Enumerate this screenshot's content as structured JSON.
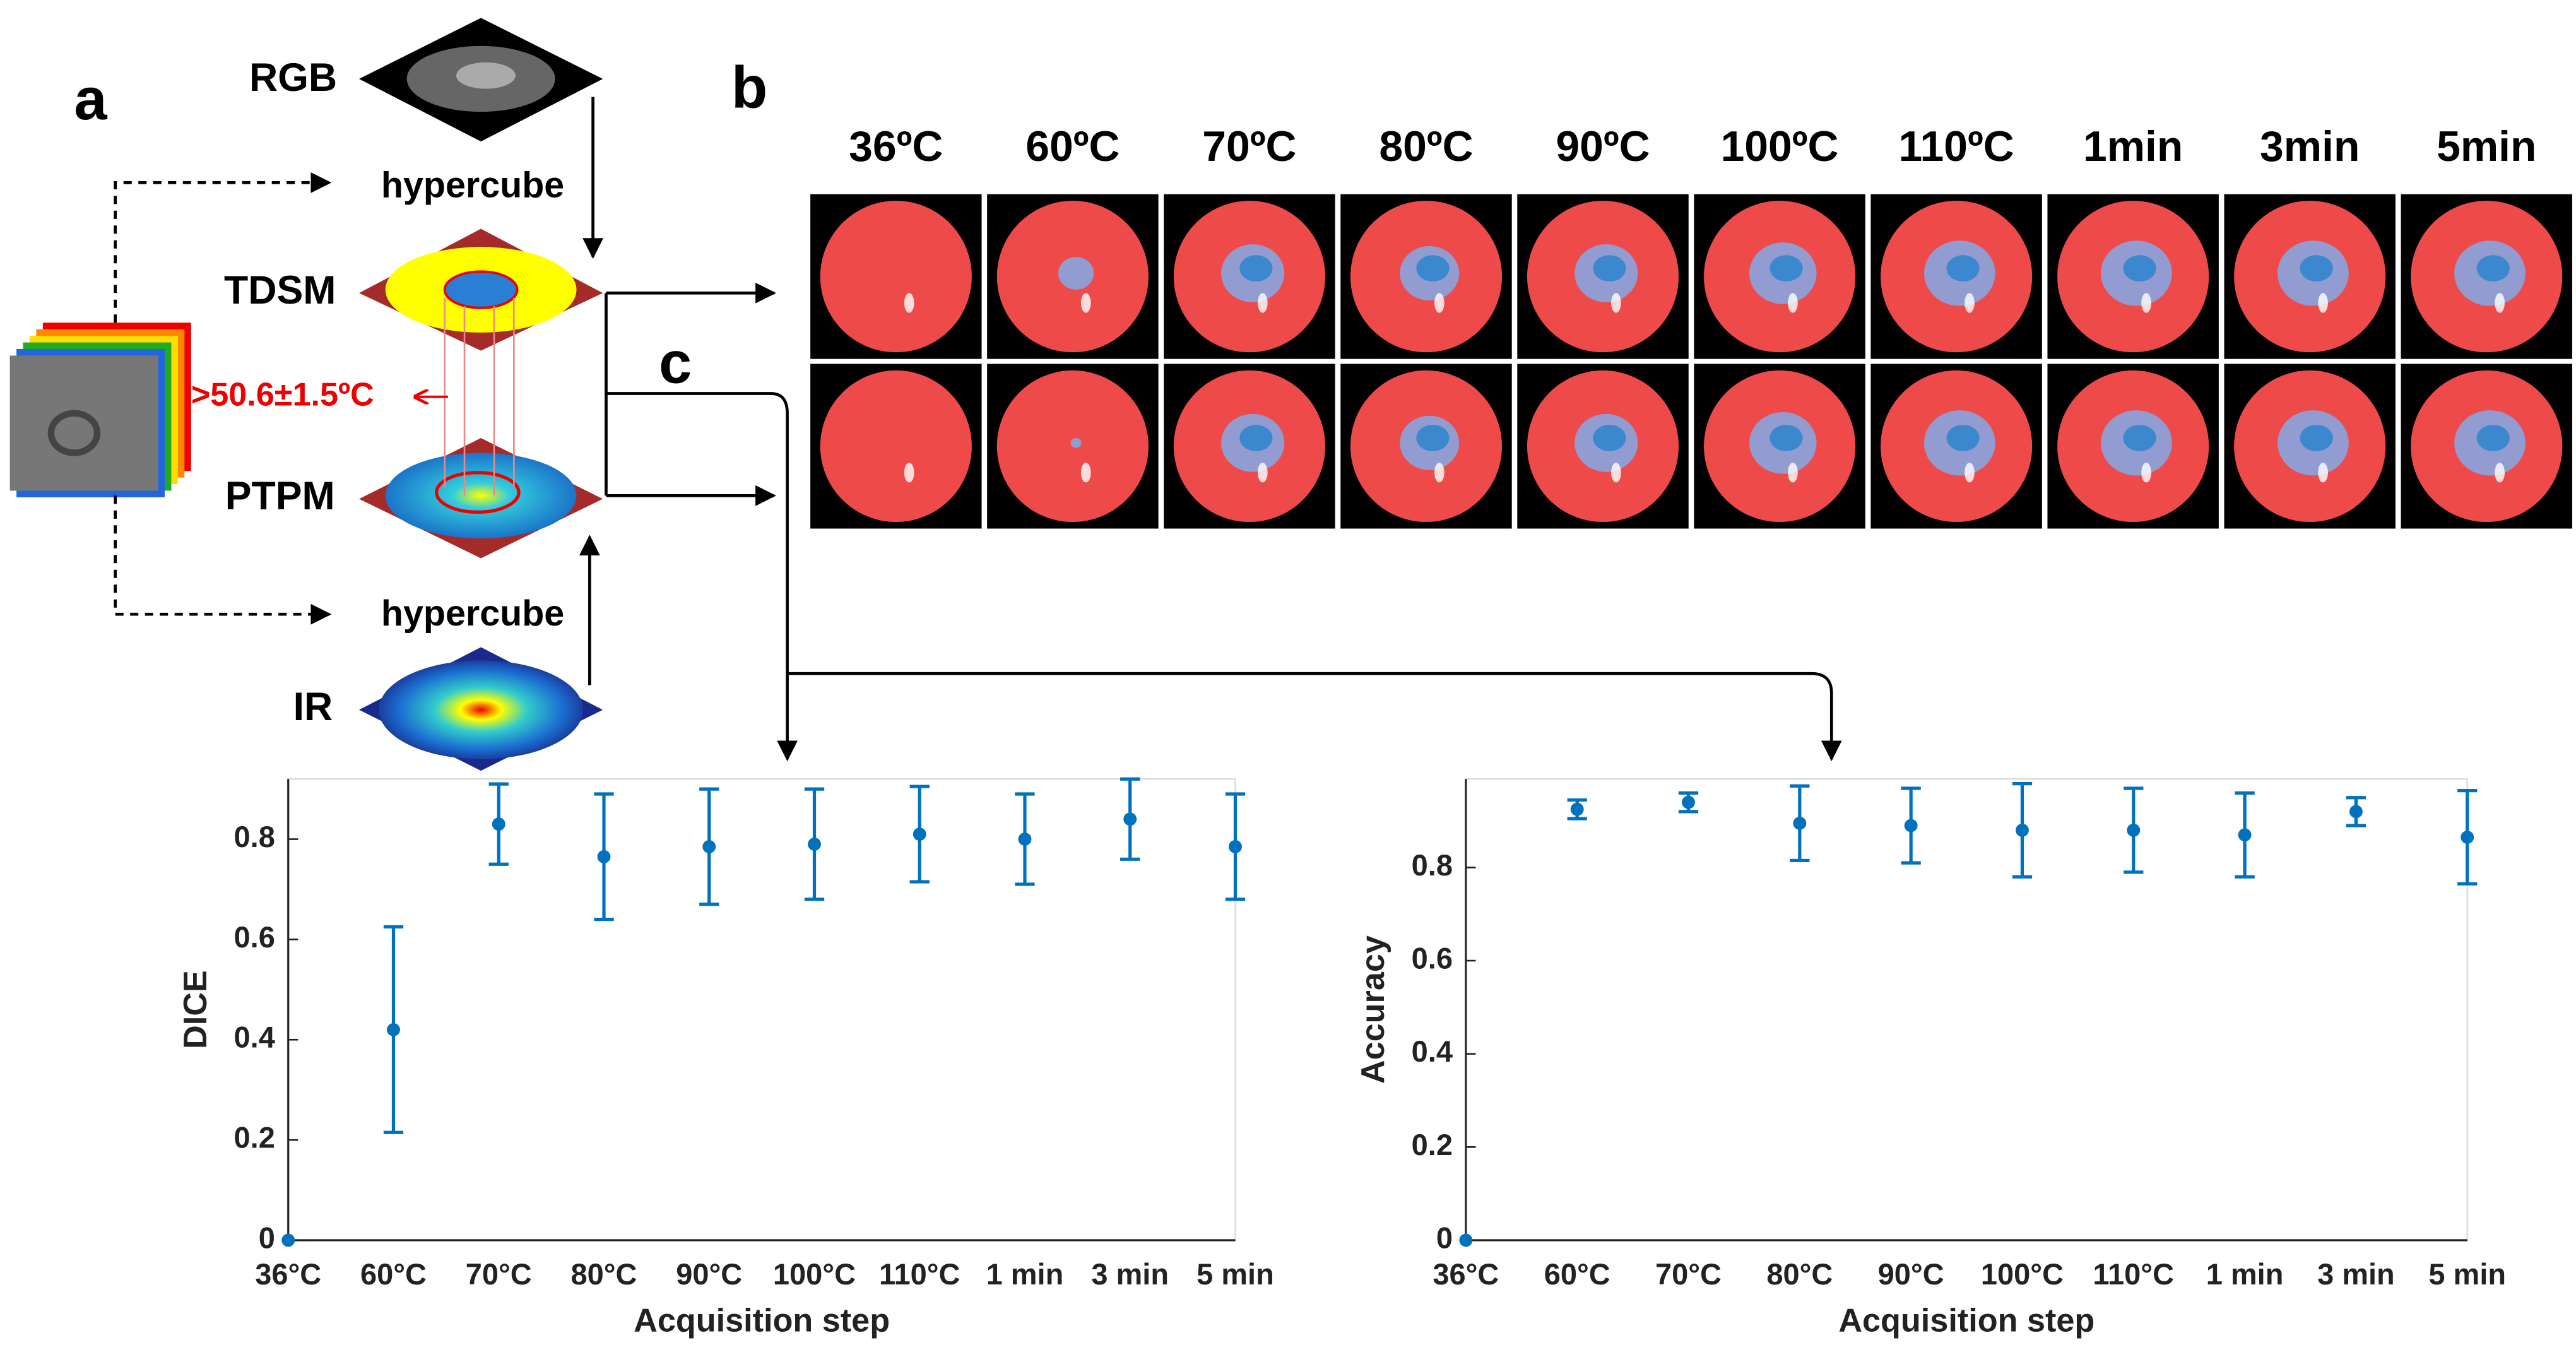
{
  "panel_labels": [
    "a",
    "b",
    "c"
  ],
  "diagram": {
    "rgb": "RGB",
    "hypercube_top": "hypercube",
    "tdsm": "TDSM",
    "threshold": ">50.6±1.5ºC",
    "ptpm": "PTPM",
    "hypercube_bottom": "hypercube",
    "ir": "IR"
  },
  "panel_b": {
    "columns": [
      "36ºC",
      "60ºC",
      "70ºC",
      "80ºC",
      "90ºC",
      "100ºC",
      "110ºC",
      "1min",
      "3min",
      "5min"
    ]
  },
  "chart_data": [
    {
      "type": "errorbar",
      "ylabel": "DICE",
      "xlabel": "Acquisition step",
      "categories": [
        "36°C",
        "60°C",
        "70°C",
        "80°C",
        "90°C",
        "100°C",
        "110°C",
        "1 min",
        "3 min",
        "5 min"
      ],
      "values": [
        0,
        0.42,
        0.83,
        0.765,
        0.785,
        0.79,
        0.81,
        0.8,
        0.84,
        0.785
      ],
      "errors": [
        0,
        0.205,
        0.08,
        0.125,
        0.115,
        0.11,
        0.095,
        0.09,
        0.08,
        0.105
      ],
      "color": "#0072bd",
      "ylim": [
        0,
        0.92
      ],
      "yticks": [
        0,
        0.2,
        0.4,
        0.6,
        0.8
      ]
    },
    {
      "type": "errorbar",
      "ylabel": "Accuracy",
      "xlabel": "Acquisition step",
      "categories": [
        "36°C",
        "60°C",
        "70°C",
        "80°C",
        "90°C",
        "100°C",
        "110°C",
        "1 min",
        "3 min",
        "5 min"
      ],
      "values": [
        0,
        0.925,
        0.94,
        0.895,
        0.89,
        0.88,
        0.88,
        0.87,
        0.92,
        0.865
      ],
      "errors": [
        0,
        0.02,
        0.02,
        0.08,
        0.08,
        0.1,
        0.09,
        0.09,
        0.03,
        0.1
      ],
      "color": "#0072bd",
      "ylim": [
        0,
        0.99
      ],
      "yticks": [
        0,
        0.2,
        0.4,
        0.6,
        0.8
      ]
    }
  ]
}
